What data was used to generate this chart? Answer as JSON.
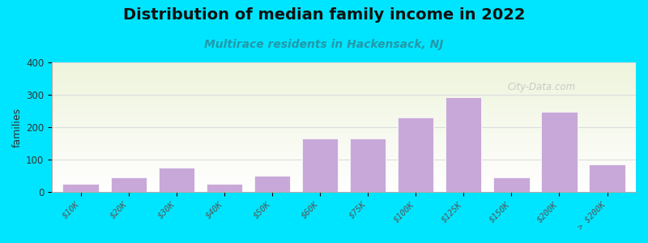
{
  "title": "Distribution of median family income in 2022",
  "subtitle": "Multirace residents in Hackensack, NJ",
  "ylabel": "families",
  "categories": [
    "$10K",
    "$20K",
    "$30K",
    "$40K",
    "$50K",
    "$60K",
    "$75K",
    "$100K",
    "$125K",
    "$150K",
    "$200K",
    "> $200K"
  ],
  "values": [
    25,
    45,
    75,
    25,
    50,
    165,
    165,
    230,
    293,
    45,
    248,
    85
  ],
  "bar_color": "#c8a8d8",
  "background_color": "#00e5ff",
  "plot_bg_top": "#eef4dc",
  "plot_bg_bottom": "#ffffff",
  "grid_color": "#dddddd",
  "title_fontsize": 14,
  "subtitle_fontsize": 10,
  "subtitle_color": "#2299aa",
  "ylabel_fontsize": 9,
  "tick_fontsize": 7.5,
  "ylim": [
    0,
    400
  ],
  "yticks": [
    0,
    100,
    200,
    300,
    400
  ],
  "watermark": "City-Data.com"
}
